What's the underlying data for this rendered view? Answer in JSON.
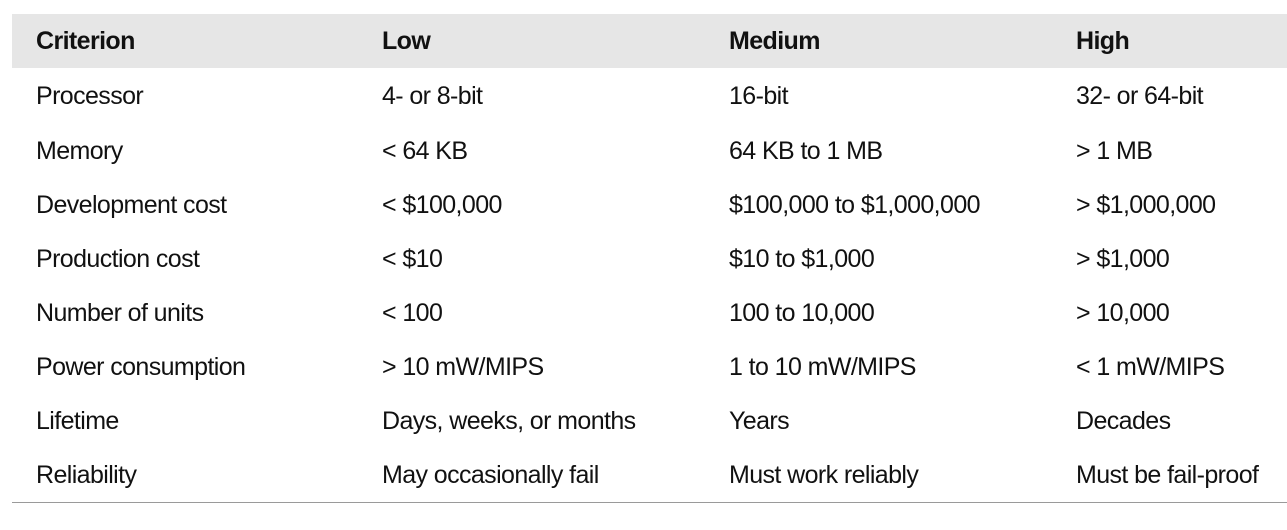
{
  "table": {
    "headers": [
      "Criterion",
      "Low",
      "Medium",
      "High"
    ],
    "rows": [
      [
        "Processor",
        "4- or 8-bit",
        "16-bit",
        "32- or 64-bit"
      ],
      [
        "Memory",
        "< 64 KB",
        "64 KB to 1 MB",
        "> 1 MB"
      ],
      [
        "Development cost",
        "< $100,000",
        "$100,000 to $1,000,000",
        "> $1,000,000"
      ],
      [
        "Production cost",
        "< $10",
        "$10 to $1,000",
        "> $1,000"
      ],
      [
        "Number of units",
        "< 100",
        "100 to 10,000",
        "> 10,000"
      ],
      [
        "Power consumption",
        "> 10 mW/MIPS",
        "1 to 10 mW/MIPS",
        "< 1 mW/MIPS"
      ],
      [
        "Lifetime",
        "Days, weeks, or months",
        "Years",
        "Decades"
      ],
      [
        "Reliability",
        "May occasionally fail",
        "Must work reliably",
        "Must be fail-proof"
      ]
    ]
  }
}
